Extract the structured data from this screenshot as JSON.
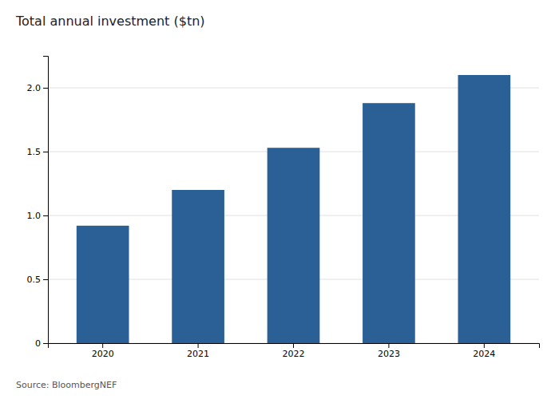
{
  "chart_data": {
    "type": "bar",
    "title": "Total annual investment ($tn)",
    "categories": [
      "2020",
      "2021",
      "2022",
      "2023",
      "2024"
    ],
    "values": [
      0.92,
      1.2,
      1.53,
      1.88,
      2.1
    ],
    "color": "#2b6097",
    "ylim": [
      0,
      2.25
    ],
    "yticks": [
      0,
      0.5,
      {
        "value": 1.0,
        "label": "1.0"
      },
      1.5,
      {
        "value": 2.0,
        "label": "2.0"
      }
    ],
    "grid": true,
    "annotations": [
      "Source: BloombergNEF"
    ]
  }
}
